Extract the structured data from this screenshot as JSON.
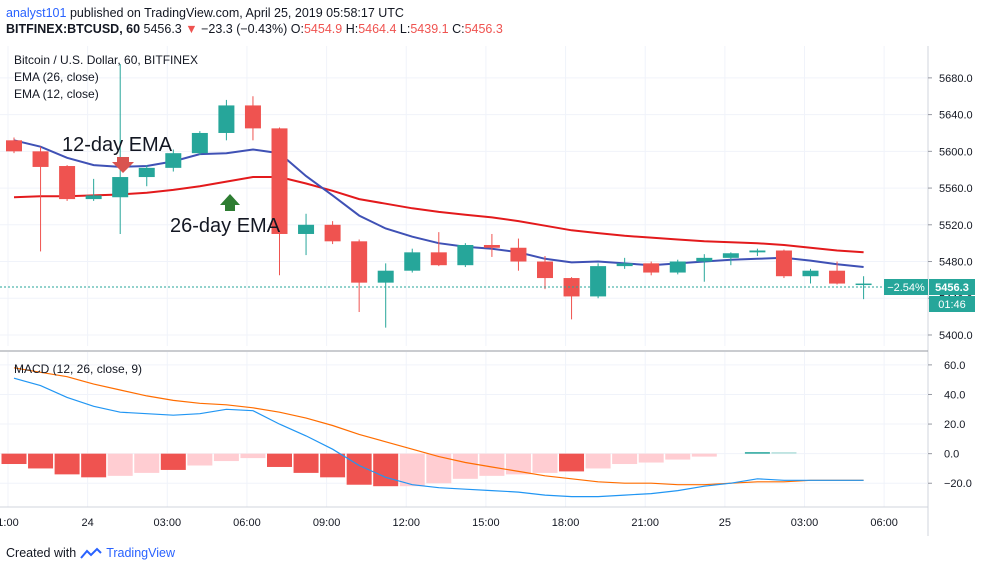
{
  "header": {
    "author": "analyst101",
    "published": "published on TradingView.com, April 25, 2019 05:58:17 UTC",
    "symbol": "BITFINEX:BTCUSD, 60",
    "price": "5456.3",
    "change": "−23.3 (−0.43%)",
    "open_label": "O:",
    "open": "5454.9",
    "high_label": "H:",
    "high": "5464.4",
    "low_label": "L:",
    "low": "5439.1",
    "close_label": "C:",
    "close": "5456.3"
  },
  "footer": {
    "created_with": "Created with",
    "brand": "TradingView"
  },
  "colors": {
    "up": "#26a69a",
    "down": "#ef5350",
    "ema26": "#e31a1c",
    "ema12": "#3f51b5",
    "macd": "#2196f3",
    "signal": "#ff6d00",
    "hist_strong": "#ef5350",
    "hist_weak": "#ffcdd2",
    "hist_pos": "#26a69a",
    "hist_pos_weak": "#b2dfdb"
  },
  "chart_data": [
    {
      "type": "candlestick",
      "title": "Bitcoin / U.S. Dollar, 60, BITFINEX",
      "series_labels": [
        "EMA (26, close)",
        "EMA (12, close)"
      ],
      "annotations": [
        "12-day EMA",
        "26-day EMA"
      ],
      "ylim": [
        5388,
        5706
      ],
      "yticks": [
        5400,
        5440,
        5480,
        5520,
        5560,
        5600,
        5640,
        5680
      ],
      "xticks": [
        {
          "label": "1:00",
          "i": 0
        },
        {
          "label": "24",
          "i": 3
        },
        {
          "label": "03:00",
          "i": 6
        },
        {
          "label": "06:00",
          "i": 9
        },
        {
          "label": "09:00",
          "i": 12
        },
        {
          "label": "12:00",
          "i": 15
        },
        {
          "label": "15:00",
          "i": 18
        },
        {
          "label": "18:00",
          "i": 21
        },
        {
          "label": "21:00",
          "i": 24
        },
        {
          "label": "25",
          "i": 27
        },
        {
          "label": "03:00",
          "i": 30
        },
        {
          "label": "06:00",
          "i": 33
        }
      ],
      "last_price": "5456.3",
      "last_change": "−2.54%",
      "countdown": "01:46",
      "candles": [
        {
          "o": 5612,
          "h": 5615,
          "l": 5598,
          "c": 5600
        },
        {
          "o": 5600,
          "h": 5605,
          "l": 5491,
          "c": 5583
        },
        {
          "o": 5584,
          "h": 5585,
          "l": 5546,
          "c": 5548
        },
        {
          "o": 5548,
          "h": 5570,
          "l": 5546,
          "c": 5552
        },
        {
          "o": 5550,
          "h": 5695,
          "l": 5510,
          "c": 5572
        },
        {
          "o": 5572,
          "h": 5585,
          "l": 5562,
          "c": 5582
        },
        {
          "o": 5582,
          "h": 5602,
          "l": 5578,
          "c": 5598
        },
        {
          "o": 5598,
          "h": 5622,
          "l": 5596,
          "c": 5620
        },
        {
          "o": 5620,
          "h": 5656,
          "l": 5612,
          "c": 5650
        },
        {
          "o": 5650,
          "h": 5660,
          "l": 5612,
          "c": 5625
        },
        {
          "o": 5625,
          "h": 5626,
          "l": 5465,
          "c": 5510
        },
        {
          "o": 5510,
          "h": 5532,
          "l": 5487,
          "c": 5520
        },
        {
          "o": 5520,
          "h": 5524,
          "l": 5499,
          "c": 5502
        },
        {
          "o": 5502,
          "h": 5504,
          "l": 5425,
          "c": 5457
        },
        {
          "o": 5457,
          "h": 5478,
          "l": 5408,
          "c": 5470
        },
        {
          "o": 5470,
          "h": 5494,
          "l": 5468,
          "c": 5490
        },
        {
          "o": 5490,
          "h": 5512,
          "l": 5475,
          "c": 5476
        },
        {
          "o": 5476,
          "h": 5500,
          "l": 5474,
          "c": 5498
        },
        {
          "o": 5498,
          "h": 5510,
          "l": 5485,
          "c": 5495
        },
        {
          "o": 5495,
          "h": 5505,
          "l": 5470,
          "c": 5480
        },
        {
          "o": 5480,
          "h": 5486,
          "l": 5450,
          "c": 5462
        },
        {
          "o": 5462,
          "h": 5463,
          "l": 5417,
          "c": 5442
        },
        {
          "o": 5442,
          "h": 5478,
          "l": 5440,
          "c": 5475
        },
        {
          "o": 5475,
          "h": 5484,
          "l": 5472,
          "c": 5478
        },
        {
          "o": 5478,
          "h": 5480,
          "l": 5465,
          "c": 5468
        },
        {
          "o": 5468,
          "h": 5482,
          "l": 5466,
          "c": 5480
        },
        {
          "o": 5480,
          "h": 5488,
          "l": 5458,
          "c": 5484
        },
        {
          "o": 5484,
          "h": 5490,
          "l": 5476,
          "c": 5489
        },
        {
          "o": 5490,
          "h": 5494,
          "l": 5486,
          "c": 5492
        },
        {
          "o": 5492,
          "h": 5493,
          "l": 5462,
          "c": 5464
        },
        {
          "o": 5464,
          "h": 5472,
          "l": 5456,
          "c": 5470
        },
        {
          "o": 5470,
          "h": 5480,
          "l": 5455,
          "c": 5456
        },
        {
          "o": 5455,
          "h": 5464,
          "l": 5439,
          "c": 5456
        }
      ],
      "ema26": [
        5550,
        5551,
        5551,
        5552,
        5553,
        5555,
        5558,
        5562,
        5567,
        5572,
        5572,
        5565,
        5557,
        5548,
        5543,
        5538,
        5534,
        5531,
        5528,
        5524,
        5519,
        5514,
        5511,
        5508,
        5506,
        5504,
        5502,
        5501,
        5500,
        5498,
        5495,
        5492,
        5490
      ],
      "ema12": [
        5612,
        5605,
        5593,
        5585,
        5583,
        5584,
        5589,
        5597,
        5598,
        5602,
        5598,
        5573,
        5552,
        5530,
        5516,
        5507,
        5500,
        5496,
        5494,
        5490,
        5483,
        5479,
        5480,
        5478,
        5476,
        5478,
        5480,
        5482,
        5483,
        5484,
        5481,
        5477,
        5474
      ]
    },
    {
      "type": "macd",
      "title": "MACD (12, 26, close, 9)",
      "ylim": [
        -32,
        66
      ],
      "yticks": [
        -20,
        0,
        20,
        40,
        60
      ],
      "macd": [
        51,
        46,
        38,
        32,
        28,
        27,
        26,
        27,
        30,
        29,
        20,
        12,
        3,
        -8,
        -16,
        -21,
        -23,
        -24,
        -25,
        -26,
        -28,
        -29,
        -29,
        -28,
        -27,
        -25,
        -22,
        -20,
        -17,
        -18,
        -18,
        -18,
        -18
      ],
      "signal": [
        58,
        55,
        52,
        47,
        43,
        39,
        36,
        34,
        33,
        31,
        28,
        24,
        19,
        13,
        8,
        3,
        -2,
        -6,
        -9,
        -12,
        -15,
        -17,
        -19,
        -20,
        -20,
        -21,
        -21,
        -20,
        -19,
        -19,
        -18,
        -18,
        -18
      ],
      "histogram": [
        -7,
        -10,
        -14,
        -16,
        -15,
        -13,
        -11,
        -8,
        -5,
        -3,
        -9,
        -13,
        -16,
        -21,
        -22,
        -22,
        -20,
        -17,
        -15,
        -14,
        -13,
        -12,
        -10,
        -7,
        -6,
        -4,
        -2,
        0,
        1,
        1,
        0,
        0,
        0
      ],
      "hist_strong": [
        true,
        true,
        true,
        true,
        false,
        false,
        true,
        false,
        false,
        false,
        true,
        true,
        true,
        true,
        true,
        false,
        false,
        false,
        false,
        false,
        false,
        true,
        false,
        false,
        false,
        false,
        false,
        false,
        true,
        false,
        false,
        false,
        false
      ]
    }
  ]
}
